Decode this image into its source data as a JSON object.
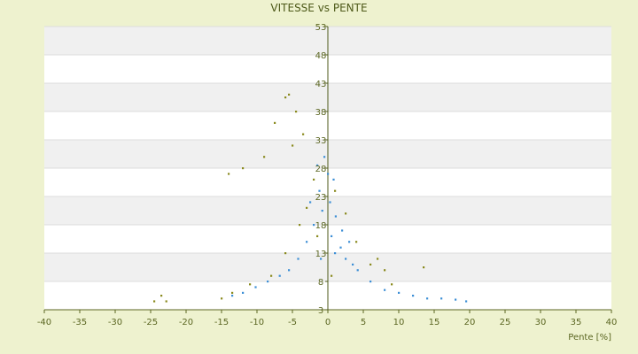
{
  "chart_data": {
    "type": "scatter",
    "title": "VITESSE vs PENTE",
    "xlabel": "Pente [%]",
    "ylabel": "",
    "xlim": [
      -40,
      40
    ],
    "ylim": [
      3,
      53
    ],
    "xticks": [
      -40,
      -35,
      -30,
      -25,
      -20,
      -15,
      -10,
      -5,
      0,
      5,
      10,
      15,
      20,
      25,
      30,
      35,
      40
    ],
    "yticks": [
      3,
      8,
      13,
      18,
      23,
      28,
      33,
      38,
      43,
      48,
      53
    ],
    "grid": "horizontal bands",
    "colors": {
      "background": "#eef2cf",
      "plot_band_light": "#ffffff",
      "plot_band_dark": "#f0f0f0",
      "series_main": "#3d8fd6",
      "series_secondary": "#8a8a1e"
    },
    "series": [
      {
        "color": "#3d8fd6",
        "points": [
          [
            -1.2,
            24.0
          ],
          [
            -0.8,
            20.5
          ],
          [
            0.3,
            22.0
          ],
          [
            1.1,
            19.5
          ],
          [
            -2.0,
            18.0
          ],
          [
            0.5,
            16.0
          ],
          [
            1.8,
            14.0
          ],
          [
            2.5,
            12.0
          ],
          [
            3.5,
            11.0
          ],
          [
            4.2,
            10.0
          ],
          [
            -3.0,
            15.0
          ],
          [
            -4.2,
            12.0
          ],
          [
            -5.5,
            10.0
          ],
          [
            -6.8,
            9.0
          ],
          [
            -8.5,
            8.0
          ],
          [
            -10.2,
            7.0
          ],
          [
            -12.0,
            6.0
          ],
          [
            -13.5,
            5.5
          ],
          [
            6.0,
            8.0
          ],
          [
            8.0,
            6.5
          ],
          [
            10.0,
            6.0
          ],
          [
            12.0,
            5.5
          ],
          [
            14.0,
            5.0
          ],
          [
            16.0,
            5.0
          ],
          [
            18.0,
            4.8
          ],
          [
            19.5,
            4.5
          ],
          [
            0.0,
            27.0
          ],
          [
            -0.5,
            30.0
          ],
          [
            0.8,
            26.0
          ],
          [
            -1.5,
            28.5
          ],
          [
            -2.5,
            22.0
          ],
          [
            2.0,
            17.0
          ],
          [
            3.0,
            15.0
          ],
          [
            1.0,
            13.0
          ],
          [
            -1.0,
            12.0
          ]
        ]
      },
      {
        "color": "#8a8a1e",
        "points": [
          [
            -5.5,
            41.0
          ],
          [
            -6.0,
            40.5
          ],
          [
            -4.5,
            38.0
          ],
          [
            -7.5,
            36.0
          ],
          [
            -3.5,
            34.0
          ],
          [
            -5.0,
            32.0
          ],
          [
            -9.0,
            30.0
          ],
          [
            -12.0,
            28.0
          ],
          [
            -14.0,
            27.0
          ],
          [
            -2.0,
            26.0
          ],
          [
            -23.5,
            5.5
          ],
          [
            -24.5,
            4.5
          ],
          [
            -22.8,
            4.5
          ],
          [
            -15.0,
            5.0
          ],
          [
            -13.5,
            6.0
          ],
          [
            -11.0,
            7.5
          ],
          [
            -8.0,
            9.0
          ],
          [
            -6.0,
            13.0
          ],
          [
            -4.0,
            18.0
          ],
          [
            1.0,
            24.0
          ],
          [
            2.5,
            20.0
          ],
          [
            4.0,
            15.0
          ],
          [
            6.0,
            11.0
          ],
          [
            8.0,
            10.0
          ],
          [
            13.5,
            10.5
          ],
          [
            9.0,
            7.5
          ],
          [
            7.0,
            12.0
          ],
          [
            -3.0,
            21.0
          ],
          [
            -1.5,
            16.0
          ],
          [
            0.5,
            9.0
          ]
        ]
      }
    ]
  }
}
